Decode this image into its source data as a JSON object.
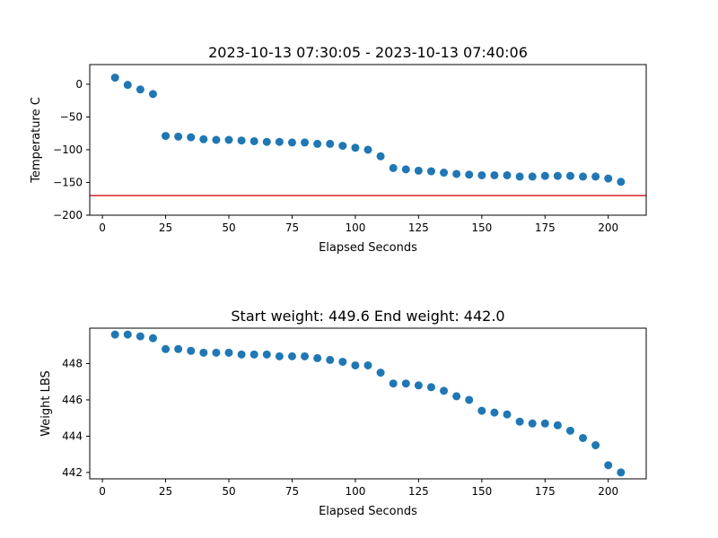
{
  "chart_data": [
    {
      "type": "scatter",
      "title": "2023-10-13 07:30:05 - 2023-10-13 07:40:06",
      "xlabel": "Elapsed Seconds",
      "ylabel": "Temperature C",
      "xlim": [
        -5,
        215
      ],
      "ylim": [
        -200,
        30
      ],
      "xticks": [
        0,
        25,
        50,
        75,
        100,
        125,
        150,
        175,
        200
      ],
      "yticks": [
        0,
        -50,
        -100,
        -150,
        -200
      ],
      "ytick_labels": [
        "0",
        "−50",
        "−100",
        "−150",
        "−200"
      ],
      "grid": false,
      "point_color": "#1f77b4",
      "hline": {
        "y": -170,
        "color": "#d62728"
      },
      "x": [
        5,
        10,
        15,
        20,
        25,
        30,
        35,
        40,
        45,
        50,
        55,
        60,
        65,
        70,
        75,
        80,
        85,
        90,
        95,
        100,
        105,
        110,
        115,
        120,
        125,
        130,
        135,
        140,
        145,
        150,
        155,
        160,
        165,
        170,
        175,
        180,
        185,
        190,
        195,
        200,
        205
      ],
      "y": [
        10,
        -1,
        -8,
        -15,
        -79,
        -80,
        -81,
        -84,
        -85,
        -85,
        -86,
        -87,
        -88,
        -88,
        -89,
        -89,
        -91,
        -91,
        -94,
        -97,
        -100,
        -110,
        -128,
        -130,
        -132,
        -133,
        -135,
        -137,
        -138,
        -139,
        -139,
        -139,
        -141,
        -141,
        -140,
        -140,
        -140,
        -141,
        -141,
        -144,
        -149
      ]
    },
    {
      "type": "scatter",
      "title": "Start weight: 449.6 End weight: 442.0",
      "xlabel": "Elapsed Seconds",
      "ylabel": "Weight LBS",
      "xlim": [
        -5,
        215
      ],
      "ylim": [
        441.65,
        449.95
      ],
      "xticks": [
        0,
        25,
        50,
        75,
        100,
        125,
        150,
        175,
        200
      ],
      "yticks": [
        442,
        444,
        446,
        448
      ],
      "ytick_labels": [
        "442",
        "444",
        "446",
        "448"
      ],
      "grid": false,
      "point_color": "#1f77b4",
      "x": [
        5,
        10,
        15,
        20,
        25,
        30,
        35,
        40,
        45,
        50,
        55,
        60,
        65,
        70,
        75,
        80,
        85,
        90,
        95,
        100,
        105,
        110,
        115,
        120,
        125,
        130,
        135,
        140,
        145,
        150,
        155,
        160,
        165,
        170,
        175,
        180,
        185,
        190,
        195,
        200,
        205
      ],
      "y": [
        449.6,
        449.6,
        449.5,
        449.4,
        448.8,
        448.8,
        448.7,
        448.6,
        448.6,
        448.6,
        448.5,
        448.5,
        448.5,
        448.4,
        448.4,
        448.4,
        448.3,
        448.2,
        448.1,
        447.9,
        447.9,
        447.5,
        446.9,
        446.9,
        446.8,
        446.7,
        446.5,
        446.2,
        446.0,
        445.4,
        445.3,
        445.2,
        444.8,
        444.7,
        444.7,
        444.6,
        444.3,
        443.9,
        443.5,
        442.4,
        442.0
      ]
    }
  ]
}
